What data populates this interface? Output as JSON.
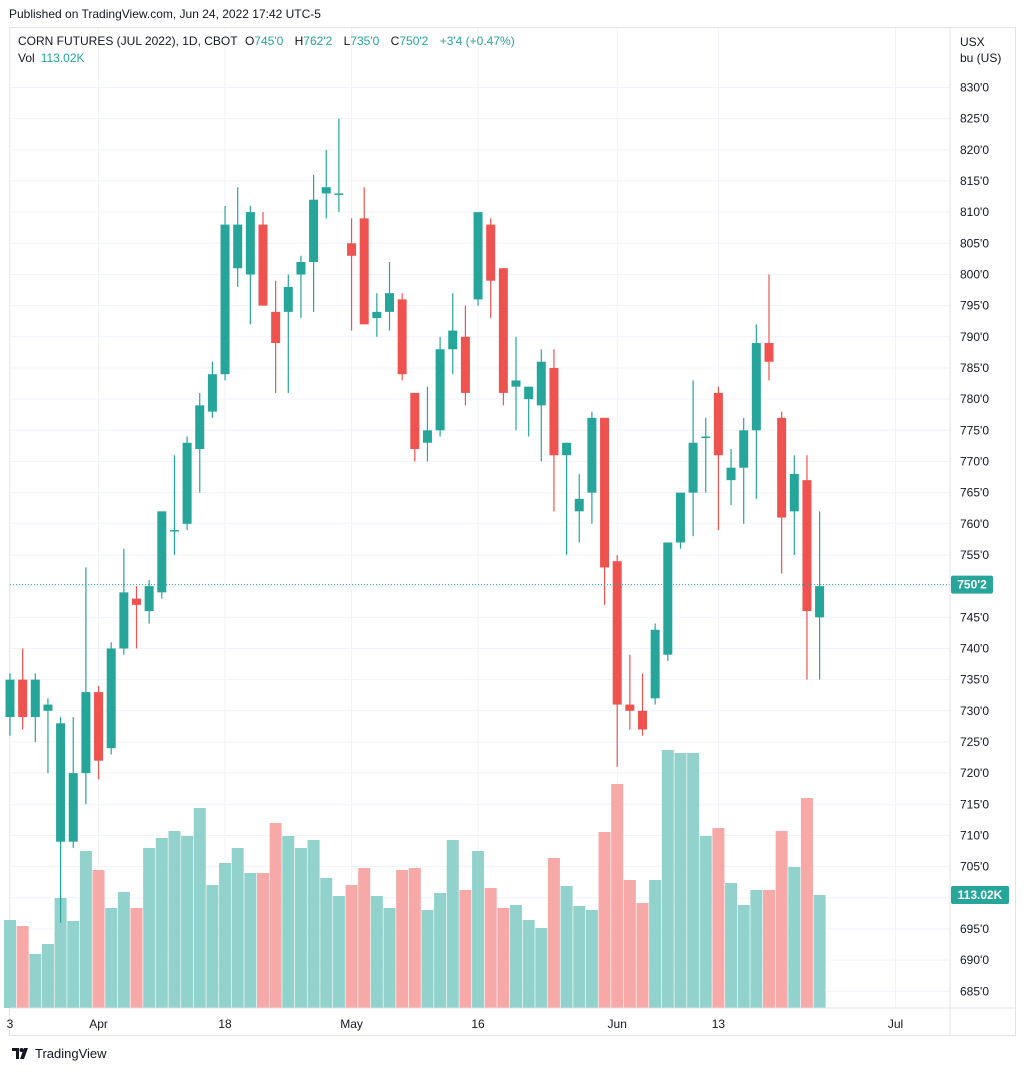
{
  "header": {
    "published": "Published on TradingView.com, Jun 24, 2022 17:42 UTC-5"
  },
  "legend": {
    "title": "CORN FUTURES (JUL 2022), 1D, CBOT",
    "o_label": "O",
    "o_value": "745'0",
    "h_label": "H",
    "h_value": "762'2",
    "l_label": "L",
    "l_value": "735'0",
    "c_label": "C",
    "c_value": "750'2",
    "change": "+3'4 (+0.47%)",
    "vol_label": "Vol",
    "vol_value": "113.02K"
  },
  "axis": {
    "currency": "USX",
    "unit": "bu (US)"
  },
  "footer": {
    "brand": "TradingView"
  },
  "colors": {
    "up": "#26a69a",
    "down": "#ef5350",
    "up_vol": "#92d2cc",
    "down_vol": "#f7a9a7",
    "grid": "#f0f3fa"
  },
  "chart_data": {
    "type": "candlestick",
    "title": "CORN FUTURES (JUL 2022), 1D, CBOT",
    "ylabel": "USX bu (US)",
    "ylim": [
      682,
      832
    ],
    "y_ticks": [
      "685'0",
      "690'0",
      "695'0",
      "700'0",
      "705'0",
      "710'0",
      "715'0",
      "720'0",
      "725'0",
      "730'0",
      "735'0",
      "740'0",
      "745'0",
      "750'0",
      "755'0",
      "760'0",
      "765'0",
      "770'0",
      "775'0",
      "780'0",
      "785'0",
      "790'0",
      "795'0",
      "800'0",
      "805'0",
      "810'0",
      "815'0",
      "820'0",
      "825'0",
      "830'0"
    ],
    "x_ticks": [
      {
        "label": "3",
        "index": 0
      },
      {
        "label": "Apr",
        "index": 7
      },
      {
        "label": "18",
        "index": 17
      },
      {
        "label": "May",
        "index": 27
      },
      {
        "label": "16",
        "index": 37
      },
      {
        "label": "Jun",
        "index": 48
      },
      {
        "label": "13",
        "index": 56
      },
      {
        "label": "Jul",
        "index": 70
      }
    ],
    "last_price": {
      "value": 750.25,
      "label": "750'2"
    },
    "last_volume_label": "113.02K",
    "volume_scale_max": 310,
    "candles": [
      {
        "o": 729,
        "h": 736,
        "l": 726,
        "c": 735,
        "v": 88
      },
      {
        "o": 735,
        "h": 740,
        "l": 727,
        "c": 729,
        "v": 82
      },
      {
        "o": 729,
        "h": 736,
        "l": 725,
        "c": 735,
        "v": 54
      },
      {
        "o": 730,
        "h": 732,
        "l": 720,
        "c": 731,
        "v": 64
      },
      {
        "o": 709,
        "h": 729,
        "l": 696,
        "c": 728,
        "v": 110
      },
      {
        "o": 709,
        "h": 729,
        "l": 708,
        "c": 720,
        "v": 87
      },
      {
        "o": 720,
        "h": 753,
        "l": 715,
        "c": 733,
        "v": 157
      },
      {
        "o": 733,
        "h": 734,
        "l": 719,
        "c": 722,
        "v": 138
      },
      {
        "o": 724,
        "h": 741,
        "l": 723,
        "c": 740,
        "v": 100
      },
      {
        "o": 740,
        "h": 756,
        "l": 739,
        "c": 749,
        "v": 116
      },
      {
        "o": 748,
        "h": 750,
        "l": 740,
        "c": 747,
        "v": 100
      },
      {
        "o": 746,
        "h": 751,
        "l": 744,
        "c": 750,
        "v": 160
      },
      {
        "o": 749,
        "h": 762,
        "l": 748,
        "c": 762,
        "v": 170
      },
      {
        "o": 759,
        "h": 771,
        "l": 755,
        "c": 759,
        "v": 177
      },
      {
        "o": 760,
        "h": 774,
        "l": 759,
        "c": 773,
        "v": 172
      },
      {
        "o": 772,
        "h": 781,
        "l": 765,
        "c": 779,
        "v": 200
      },
      {
        "o": 778,
        "h": 786,
        "l": 777,
        "c": 784,
        "v": 123
      },
      {
        "o": 784,
        "h": 811,
        "l": 783,
        "c": 808,
        "v": 145
      },
      {
        "o": 801,
        "h": 814,
        "l": 798,
        "c": 808,
        "v": 160
      },
      {
        "o": 800,
        "h": 811,
        "l": 792,
        "c": 810,
        "v": 135
      },
      {
        "o": 808,
        "h": 810,
        "l": 795,
        "c": 795,
        "v": 135
      },
      {
        "o": 794,
        "h": 799,
        "l": 781,
        "c": 789,
        "v": 185
      },
      {
        "o": 794,
        "h": 800,
        "l": 781,
        "c": 798,
        "v": 172
      },
      {
        "o": 800,
        "h": 803,
        "l": 793,
        "c": 802,
        "v": 160
      },
      {
        "o": 802,
        "h": 816,
        "l": 794,
        "c": 812,
        "v": 168
      },
      {
        "o": 813,
        "h": 820,
        "l": 809,
        "c": 814,
        "v": 130
      },
      {
        "o": 813,
        "h": 825,
        "l": 810,
        "c": 813,
        "v": 112
      },
      {
        "o": 805,
        "h": 809,
        "l": 791,
        "c": 803,
        "v": 123
      },
      {
        "o": 809,
        "h": 814,
        "l": 793,
        "c": 792,
        "v": 140
      },
      {
        "o": 793,
        "h": 797,
        "l": 790,
        "c": 794,
        "v": 112
      },
      {
        "o": 794,
        "h": 802,
        "l": 791,
        "c": 797,
        "v": 100
      },
      {
        "o": 796,
        "h": 797,
        "l": 783,
        "c": 784,
        "v": 138
      },
      {
        "o": 781,
        "h": 781,
        "l": 770,
        "c": 772,
        "v": 140
      },
      {
        "o": 773,
        "h": 782,
        "l": 770,
        "c": 775,
        "v": 98
      },
      {
        "o": 775,
        "h": 790,
        "l": 774,
        "c": 788,
        "v": 115
      },
      {
        "o": 788,
        "h": 797,
        "l": 784,
        "c": 791,
        "v": 168
      },
      {
        "o": 790,
        "h": 795,
        "l": 779,
        "c": 781,
        "v": 118
      },
      {
        "o": 796,
        "h": 810,
        "l": 795,
        "c": 810,
        "v": 157
      },
      {
        "o": 808,
        "h": 809,
        "l": 793,
        "c": 799,
        "v": 120
      },
      {
        "o": 801,
        "h": 801,
        "l": 779,
        "c": 781,
        "v": 100
      },
      {
        "o": 782,
        "h": 790,
        "l": 775,
        "c": 783,
        "v": 103
      },
      {
        "o": 780,
        "h": 782,
        "l": 774,
        "c": 782,
        "v": 88
      },
      {
        "o": 779,
        "h": 788,
        "l": 770,
        "c": 786,
        "v": 80
      },
      {
        "o": 785,
        "h": 788,
        "l": 762,
        "c": 771,
        "v": 150
      },
      {
        "o": 771,
        "h": 773,
        "l": 755,
        "c": 773,
        "v": 122
      },
      {
        "o": 762,
        "h": 768,
        "l": 757,
        "c": 764,
        "v": 102
      },
      {
        "o": 765,
        "h": 778,
        "l": 760,
        "c": 777,
        "v": 98
      },
      {
        "o": 777,
        "h": 777,
        "l": 747,
        "c": 753,
        "v": 176
      },
      {
        "o": 754,
        "h": 755,
        "l": 721,
        "c": 731,
        "v": 224
      },
      {
        "o": 731,
        "h": 739,
        "l": 727,
        "c": 730,
        "v": 128
      },
      {
        "o": 730,
        "h": 736,
        "l": 726,
        "c": 727,
        "v": 105
      },
      {
        "o": 732,
        "h": 744,
        "l": 731,
        "c": 743,
        "v": 128
      },
      {
        "o": 739,
        "h": 757,
        "l": 738,
        "c": 757,
        "v": 258
      },
      {
        "o": 757,
        "h": 765,
        "l": 756,
        "c": 765,
        "v": 255
      },
      {
        "o": 765,
        "h": 783,
        "l": 758,
        "c": 773,
        "v": 255
      },
      {
        "o": 774,
        "h": 777,
        "l": 765,
        "c": 774,
        "v": 172
      },
      {
        "o": 781,
        "h": 782,
        "l": 759,
        "c": 771,
        "v": 180
      },
      {
        "o": 767,
        "h": 772,
        "l": 763,
        "c": 769,
        "v": 125
      },
      {
        "o": 769,
        "h": 777,
        "l": 760,
        "c": 775,
        "v": 103
      },
      {
        "o": 775,
        "h": 792,
        "l": 764,
        "c": 789,
        "v": 118
      },
      {
        "o": 789,
        "h": 800,
        "l": 783,
        "c": 786,
        "v": 118
      },
      {
        "o": 777,
        "h": 778,
        "l": 752,
        "c": 761,
        "v": 177
      },
      {
        "o": 762,
        "h": 771,
        "l": 755,
        "c": 768,
        "v": 141
      },
      {
        "o": 767,
        "h": 771,
        "l": 735,
        "c": 746,
        "v": 210
      },
      {
        "o": 745,
        "h": 762,
        "l": 735,
        "c": 750,
        "v": 113
      }
    ]
  }
}
